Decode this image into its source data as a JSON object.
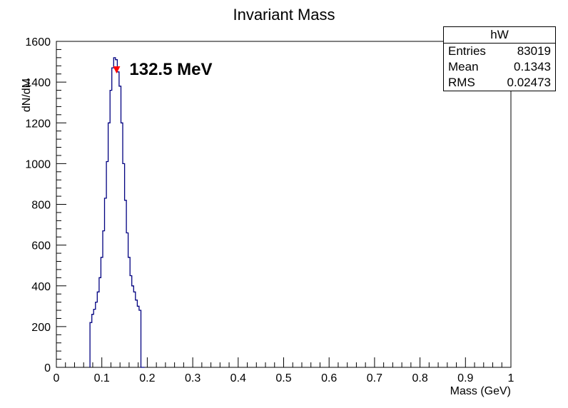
{
  "chart_data": {
    "type": "histogram",
    "title": "Invariant Mass",
    "xlabel": "Mass (GeV)",
    "ylabel": "dN/dM",
    "xlim": [
      0,
      1
    ],
    "ylim": [
      0,
      1600
    ],
    "xticks": [
      "0",
      "0.1",
      "0.2",
      "0.3",
      "0.4",
      "0.5",
      "0.6",
      "0.7",
      "0.8",
      "0.9",
      "1"
    ],
    "yticks": [
      "0",
      "200",
      "400",
      "600",
      "800",
      "1000",
      "1200",
      "1400",
      "1600"
    ],
    "line_color": "#000080",
    "bins": {
      "x": [
        0.074,
        0.078,
        0.082,
        0.086,
        0.09,
        0.094,
        0.098,
        0.102,
        0.106,
        0.11,
        0.114,
        0.118,
        0.122,
        0.126,
        0.13,
        0.134,
        0.138,
        0.142,
        0.146,
        0.15,
        0.154,
        0.158,
        0.162,
        0.166,
        0.17,
        0.174,
        0.178,
        0.182,
        0.186,
        0.19,
        0.194
      ],
      "y": [
        220,
        260,
        285,
        320,
        370,
        440,
        540,
        670,
        830,
        1010,
        1200,
        1360,
        1470,
        1520,
        1510,
        1450,
        1380,
        1200,
        1000,
        820,
        660,
        540,
        450,
        400,
        370,
        330,
        300,
        280,
        0,
        0,
        0
      ]
    },
    "marker": {
      "x": 0.1325,
      "y": 1460,
      "label": "132.5 MeV",
      "color": "#ff0000"
    }
  },
  "stats": {
    "name": "hW",
    "rows": [
      {
        "label": "Entries",
        "value": "83019"
      },
      {
        "label": "Mean",
        "value": "0.1343"
      },
      {
        "label": "RMS",
        "value": "0.02473"
      }
    ]
  }
}
